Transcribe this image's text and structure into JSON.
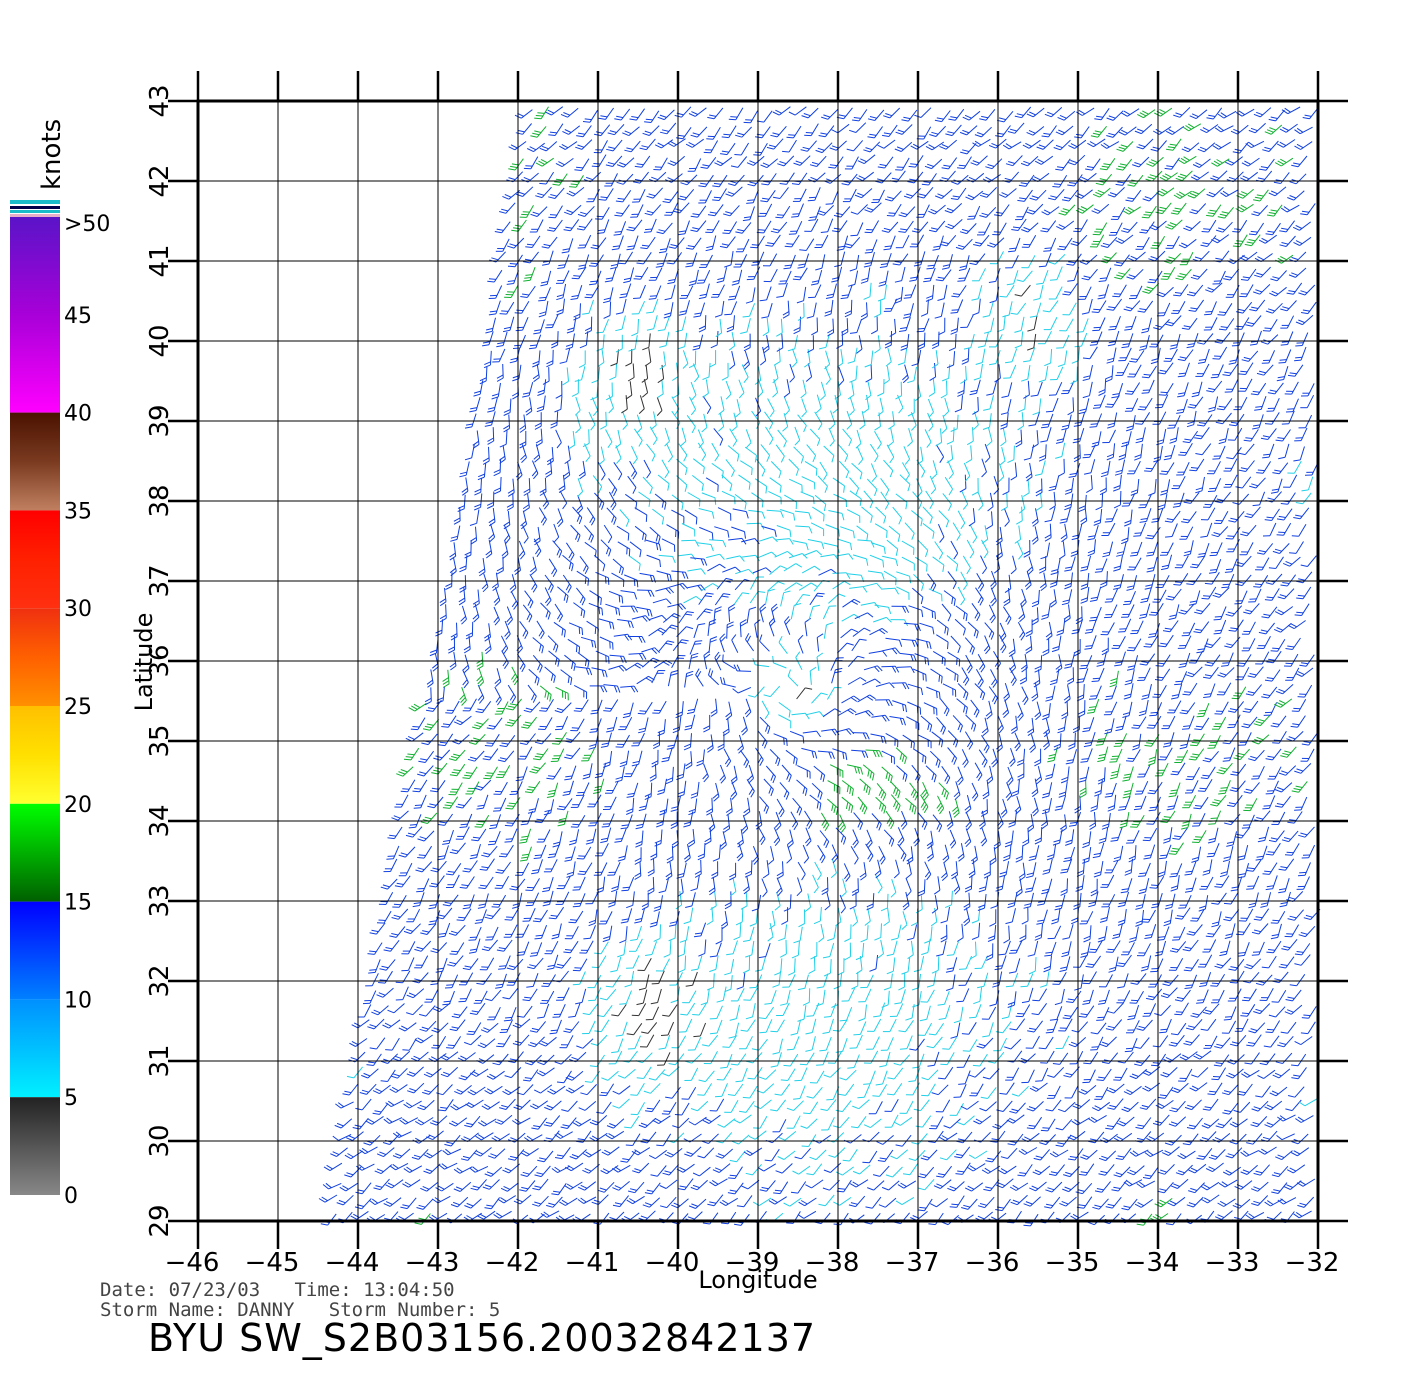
{
  "colorbar": {
    "units": "knots",
    "top_label": ">50",
    "tick_labels": [
      "45",
      "40",
      "35",
      "30",
      "25",
      "20",
      "15",
      "10",
      "5",
      "0"
    ],
    "bands": [
      {
        "from": 50,
        "to": 40,
        "colors": [
          "#5a14c8",
          "#a800d8",
          "#ff00ff"
        ]
      },
      {
        "from": 40,
        "to": 35,
        "colors": [
          "#4a1200",
          "#7a3a20",
          "#c08060"
        ]
      },
      {
        "from": 35,
        "to": 30,
        "colors": [
          "#ff0000",
          "#ff2000",
          "#ff3010"
        ]
      },
      {
        "from": 30,
        "to": 25,
        "colors": [
          "#f03010",
          "#ff6000",
          "#ff9000"
        ]
      },
      {
        "from": 25,
        "to": 20,
        "colors": [
          "#ffc000",
          "#ffe000",
          "#ffff30"
        ]
      },
      {
        "from": 20,
        "to": 15,
        "colors": [
          "#00ff00",
          "#00b000",
          "#006000"
        ]
      },
      {
        "from": 15,
        "to": 10,
        "colors": [
          "#0000ff",
          "#0040ff",
          "#0080ff"
        ]
      },
      {
        "from": 10,
        "to": 5,
        "colors": [
          "#0090ff",
          "#00c0ff",
          "#00f0ff"
        ]
      },
      {
        "from": 5,
        "to": 0,
        "colors": [
          "#222222",
          "#555555",
          "#888888"
        ]
      }
    ]
  },
  "chart_data": {
    "type": "wind-barb map",
    "xlabel": "Longitude",
    "ylabel": "Latitude",
    "xlim": [
      -46,
      -32
    ],
    "ylim": [
      29,
      43
    ],
    "x_ticks": [
      -46,
      -45,
      -44,
      -43,
      -42,
      -41,
      -40,
      -39,
      -38,
      -37,
      -36,
      -35,
      -34,
      -33,
      -32
    ],
    "y_ticks": [
      29,
      30,
      31,
      32,
      33,
      34,
      35,
      36,
      37,
      38,
      39,
      40,
      41,
      42,
      43
    ],
    "grid": true,
    "swath": {
      "top_left_lon": -41.9,
      "bottom_left_lon": -44.4,
      "right_lon": -32
    },
    "low_wind_areas": [
      {
        "lon": -40.6,
        "lat": 39.7,
        "wind_kt": 3
      },
      {
        "lon": -40.3,
        "lat": 31.7,
        "wind_kt": 3
      },
      {
        "lon": -35.5,
        "lat": 40.4,
        "wind_kt": 4
      }
    ],
    "storm_center": {
      "lon": -38.6,
      "lat": 35.6
    },
    "strong_wind_band": {
      "lon": -37.6,
      "lat": 34.4,
      "wind_kt": 19
    }
  },
  "info": {
    "date_line": "Date: 07/23/03   Time: 13:04:50",
    "storm_line": "Storm Name: DANNY   Storm Number: 5",
    "product_title": "BYU SW_S2B03156.20032842137"
  },
  "colors": {
    "grid": "#000000",
    "wind_blue": "#1040e0",
    "wind_cyan": "#20d0e8",
    "wind_green": "#10b030",
    "wind_yellow": "#ffe020"
  }
}
